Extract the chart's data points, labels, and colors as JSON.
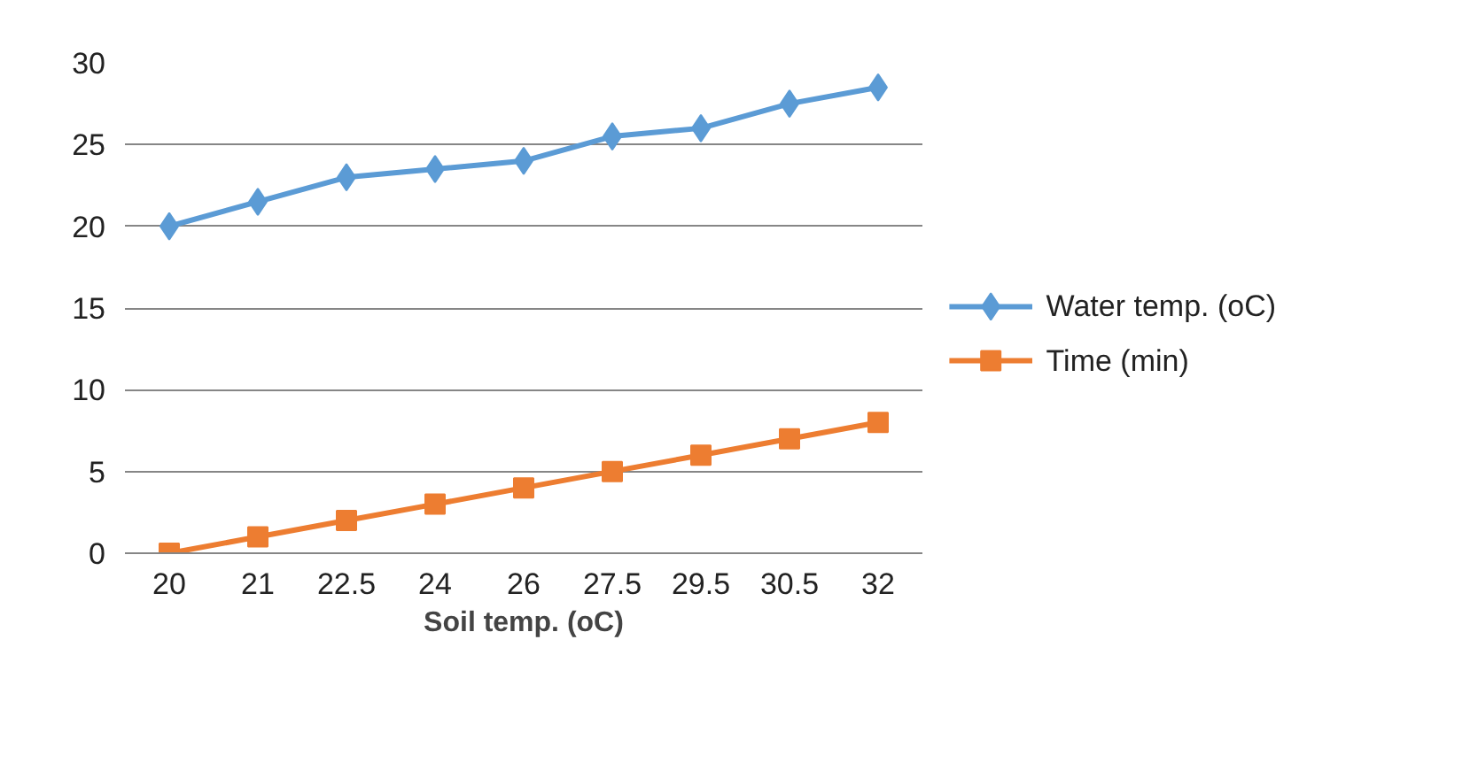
{
  "chart_data": {
    "type": "line",
    "xlabel": "Soil temp. (oC)",
    "categories": [
      "20",
      "21",
      "22.5",
      "24",
      "26",
      "27.5",
      "29.5",
      "30.5",
      "32"
    ],
    "series": [
      {
        "name": "Water temp. (oC)",
        "color": "#5b9bd5",
        "marker": "diamond",
        "values": [
          20,
          21.5,
          23,
          23.5,
          24,
          25.5,
          26,
          27.5,
          28.5
        ]
      },
      {
        "name": "Time (min)",
        "color": "#ed7d31",
        "marker": "square",
        "values": [
          0,
          1,
          2,
          3,
          4,
          5,
          6,
          7,
          8
        ]
      }
    ],
    "ylim": [
      0,
      30
    ],
    "yticks": [
      0,
      5,
      10,
      15,
      20,
      25,
      30
    ],
    "grid": "y",
    "legend": "right",
    "line_style": "solid"
  }
}
